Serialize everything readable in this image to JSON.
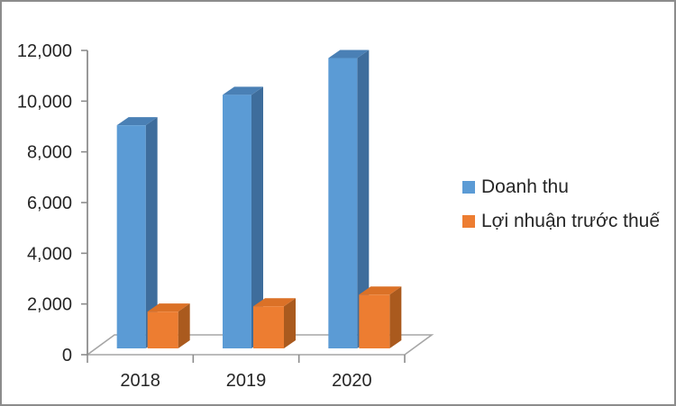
{
  "chart_data": {
    "type": "bar",
    "style": "3d-clustered-column",
    "title": "",
    "categories": [
      "2018",
      "2019",
      "2020"
    ],
    "series": [
      {
        "name": "Doanh thu",
        "values": [
          8800,
          10000,
          11450
        ],
        "color": "#5B9BD5",
        "color_side": "#3E6D9C",
        "color_top": "#4A80B5"
      },
      {
        "name": "Lợi nhuận trước thuế",
        "values": [
          1450,
          1660,
          2120
        ],
        "color": "#ED7D31",
        "color_side": "#AA5A1E",
        "color_top": "#DB7127"
      }
    ],
    "y_axis": {
      "min": 0,
      "max": 12000,
      "step": 2000,
      "tick_labels": [
        "0",
        "2,000",
        "4,000",
        "6,000",
        "8,000",
        "10,000",
        "12,000"
      ]
    },
    "x_axis": {
      "tick_labels": [
        "2018",
        "2019",
        "2020"
      ]
    },
    "legend_position": "right",
    "grid": false,
    "colors": {
      "axis": "#8C8C8C",
      "floor": "#A6A6A6",
      "text": "#262626",
      "background": "#FFFFFF",
      "border": "#8C8C8C"
    }
  }
}
